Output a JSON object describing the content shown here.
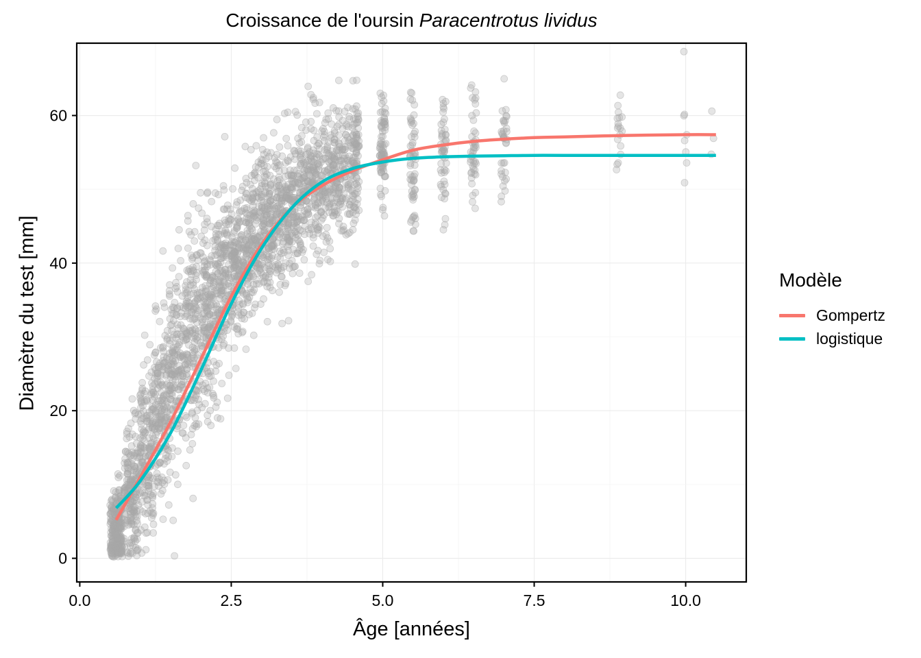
{
  "chart_data": {
    "type": "scatter",
    "title_plain": "Croissance de l'oursin ",
    "title_italic": "Paracentrotus lividus",
    "xlabel": "Âge  [années]",
    "ylabel": "Diamètre du test  [mm]",
    "xlim": [
      -0.05,
      11.0
    ],
    "ylim": [
      -3.2,
      69.8
    ],
    "x_ticks": [
      0.0,
      2.5,
      5.0,
      7.5,
      10.0
    ],
    "x_tick_labels": [
      "0.0",
      "2.5",
      "5.0",
      "7.5",
      "10.0"
    ],
    "y_ticks": [
      0,
      20,
      40,
      60
    ],
    "y_tick_labels": [
      "0",
      "20",
      "40",
      "60"
    ],
    "grid": true,
    "legend_position": "right",
    "legend_title": "Modèle",
    "point_color": "#a8a8a8",
    "point_opacity": 0.3,
    "scatter_groups": [
      {
        "x": 0.6,
        "center": 4,
        "sd": 3.0,
        "n": 240,
        "jitter": 0.1
      },
      {
        "x": 0.85,
        "center": 9,
        "sd": 4.5,
        "n": 180,
        "jitter": 0.12
      },
      {
        "x": 1.1,
        "center": 15,
        "sd": 5.5,
        "n": 170,
        "jitter": 0.12
      },
      {
        "x": 1.35,
        "center": 21,
        "sd": 6.5,
        "n": 170,
        "jitter": 0.12
      },
      {
        "x": 1.6,
        "center": 26,
        "sd": 7.0,
        "n": 170,
        "jitter": 0.12
      },
      {
        "x": 1.85,
        "center": 30,
        "sd": 7.5,
        "n": 170,
        "jitter": 0.12
      },
      {
        "x": 2.1,
        "center": 34,
        "sd": 7.0,
        "n": 170,
        "jitter": 0.12
      },
      {
        "x": 2.35,
        "center": 37,
        "sd": 6.5,
        "n": 170,
        "jitter": 0.12
      },
      {
        "x": 2.6,
        "center": 40,
        "sd": 6.0,
        "n": 170,
        "jitter": 0.12
      },
      {
        "x": 2.85,
        "center": 43,
        "sd": 5.5,
        "n": 170,
        "jitter": 0.12
      },
      {
        "x": 3.1,
        "center": 45,
        "sd": 5.0,
        "n": 170,
        "jitter": 0.12
      },
      {
        "x": 3.35,
        "center": 47,
        "sd": 5.0,
        "n": 160,
        "jitter": 0.12
      },
      {
        "x": 3.6,
        "center": 49,
        "sd": 4.5,
        "n": 150,
        "jitter": 0.12
      },
      {
        "x": 3.85,
        "center": 51,
        "sd": 4.5,
        "n": 140,
        "jitter": 0.12
      },
      {
        "x": 4.1,
        "center": 52,
        "sd": 4.5,
        "n": 130,
        "jitter": 0.12
      },
      {
        "x": 4.35,
        "center": 53,
        "sd": 4.5,
        "n": 120,
        "jitter": 0.12
      },
      {
        "x": 4.55,
        "center": 54,
        "sd": 4.5,
        "n": 100,
        "jitter": 0.06
      },
      {
        "x": 5.0,
        "center": 55,
        "sd": 4.2,
        "n": 80,
        "jitter": 0.05
      },
      {
        "x": 5.5,
        "center": 54,
        "sd": 4.5,
        "n": 60,
        "jitter": 0.05
      },
      {
        "x": 6.0,
        "center": 55,
        "sd": 4.5,
        "n": 50,
        "jitter": 0.05
      },
      {
        "x": 6.5,
        "center": 55,
        "sd": 4.5,
        "n": 45,
        "jitter": 0.05
      },
      {
        "x": 7.0,
        "center": 56,
        "sd": 4.5,
        "n": 35,
        "jitter": 0.05
      },
      {
        "x": 8.9,
        "center": 58,
        "sd": 4.0,
        "n": 18,
        "jitter": 0.05
      },
      {
        "x": 10.0,
        "center": 57,
        "sd": 4.0,
        "n": 8,
        "jitter": 0.03
      },
      {
        "x": 10.45,
        "center": 55,
        "sd": 3.0,
        "n": 3,
        "jitter": 0.03
      }
    ],
    "series": [
      {
        "name": "Gompertz",
        "color": "#f8766d",
        "x": [
          0.6,
          1.0,
          1.5,
          2.0,
          2.5,
          3.0,
          3.5,
          4.0,
          4.5,
          5.0,
          5.5,
          6.0,
          6.5,
          7.0,
          7.5,
          8.0,
          9.0,
          10.0,
          10.5
        ],
        "y": [
          5.2,
          11.0,
          18.5,
          27.0,
          35.5,
          42.5,
          47.5,
          50.5,
          52.5,
          54.0,
          55.3,
          56.0,
          56.5,
          56.8,
          57.0,
          57.1,
          57.3,
          57.4,
          57.4
        ]
      },
      {
        "name": "logistique",
        "color": "#00bfc4",
        "x": [
          0.6,
          1.0,
          1.5,
          2.0,
          2.5,
          3.0,
          3.5,
          4.0,
          4.5,
          5.0,
          5.5,
          6.0,
          6.5,
          7.0,
          7.5,
          8.0,
          9.0,
          10.0,
          10.5
        ],
        "y": [
          6.8,
          10.5,
          17.0,
          25.5,
          34.5,
          42.0,
          47.5,
          51.0,
          52.8,
          53.7,
          54.2,
          54.4,
          54.5,
          54.55,
          54.6,
          54.6,
          54.6,
          54.6,
          54.6
        ]
      }
    ]
  }
}
